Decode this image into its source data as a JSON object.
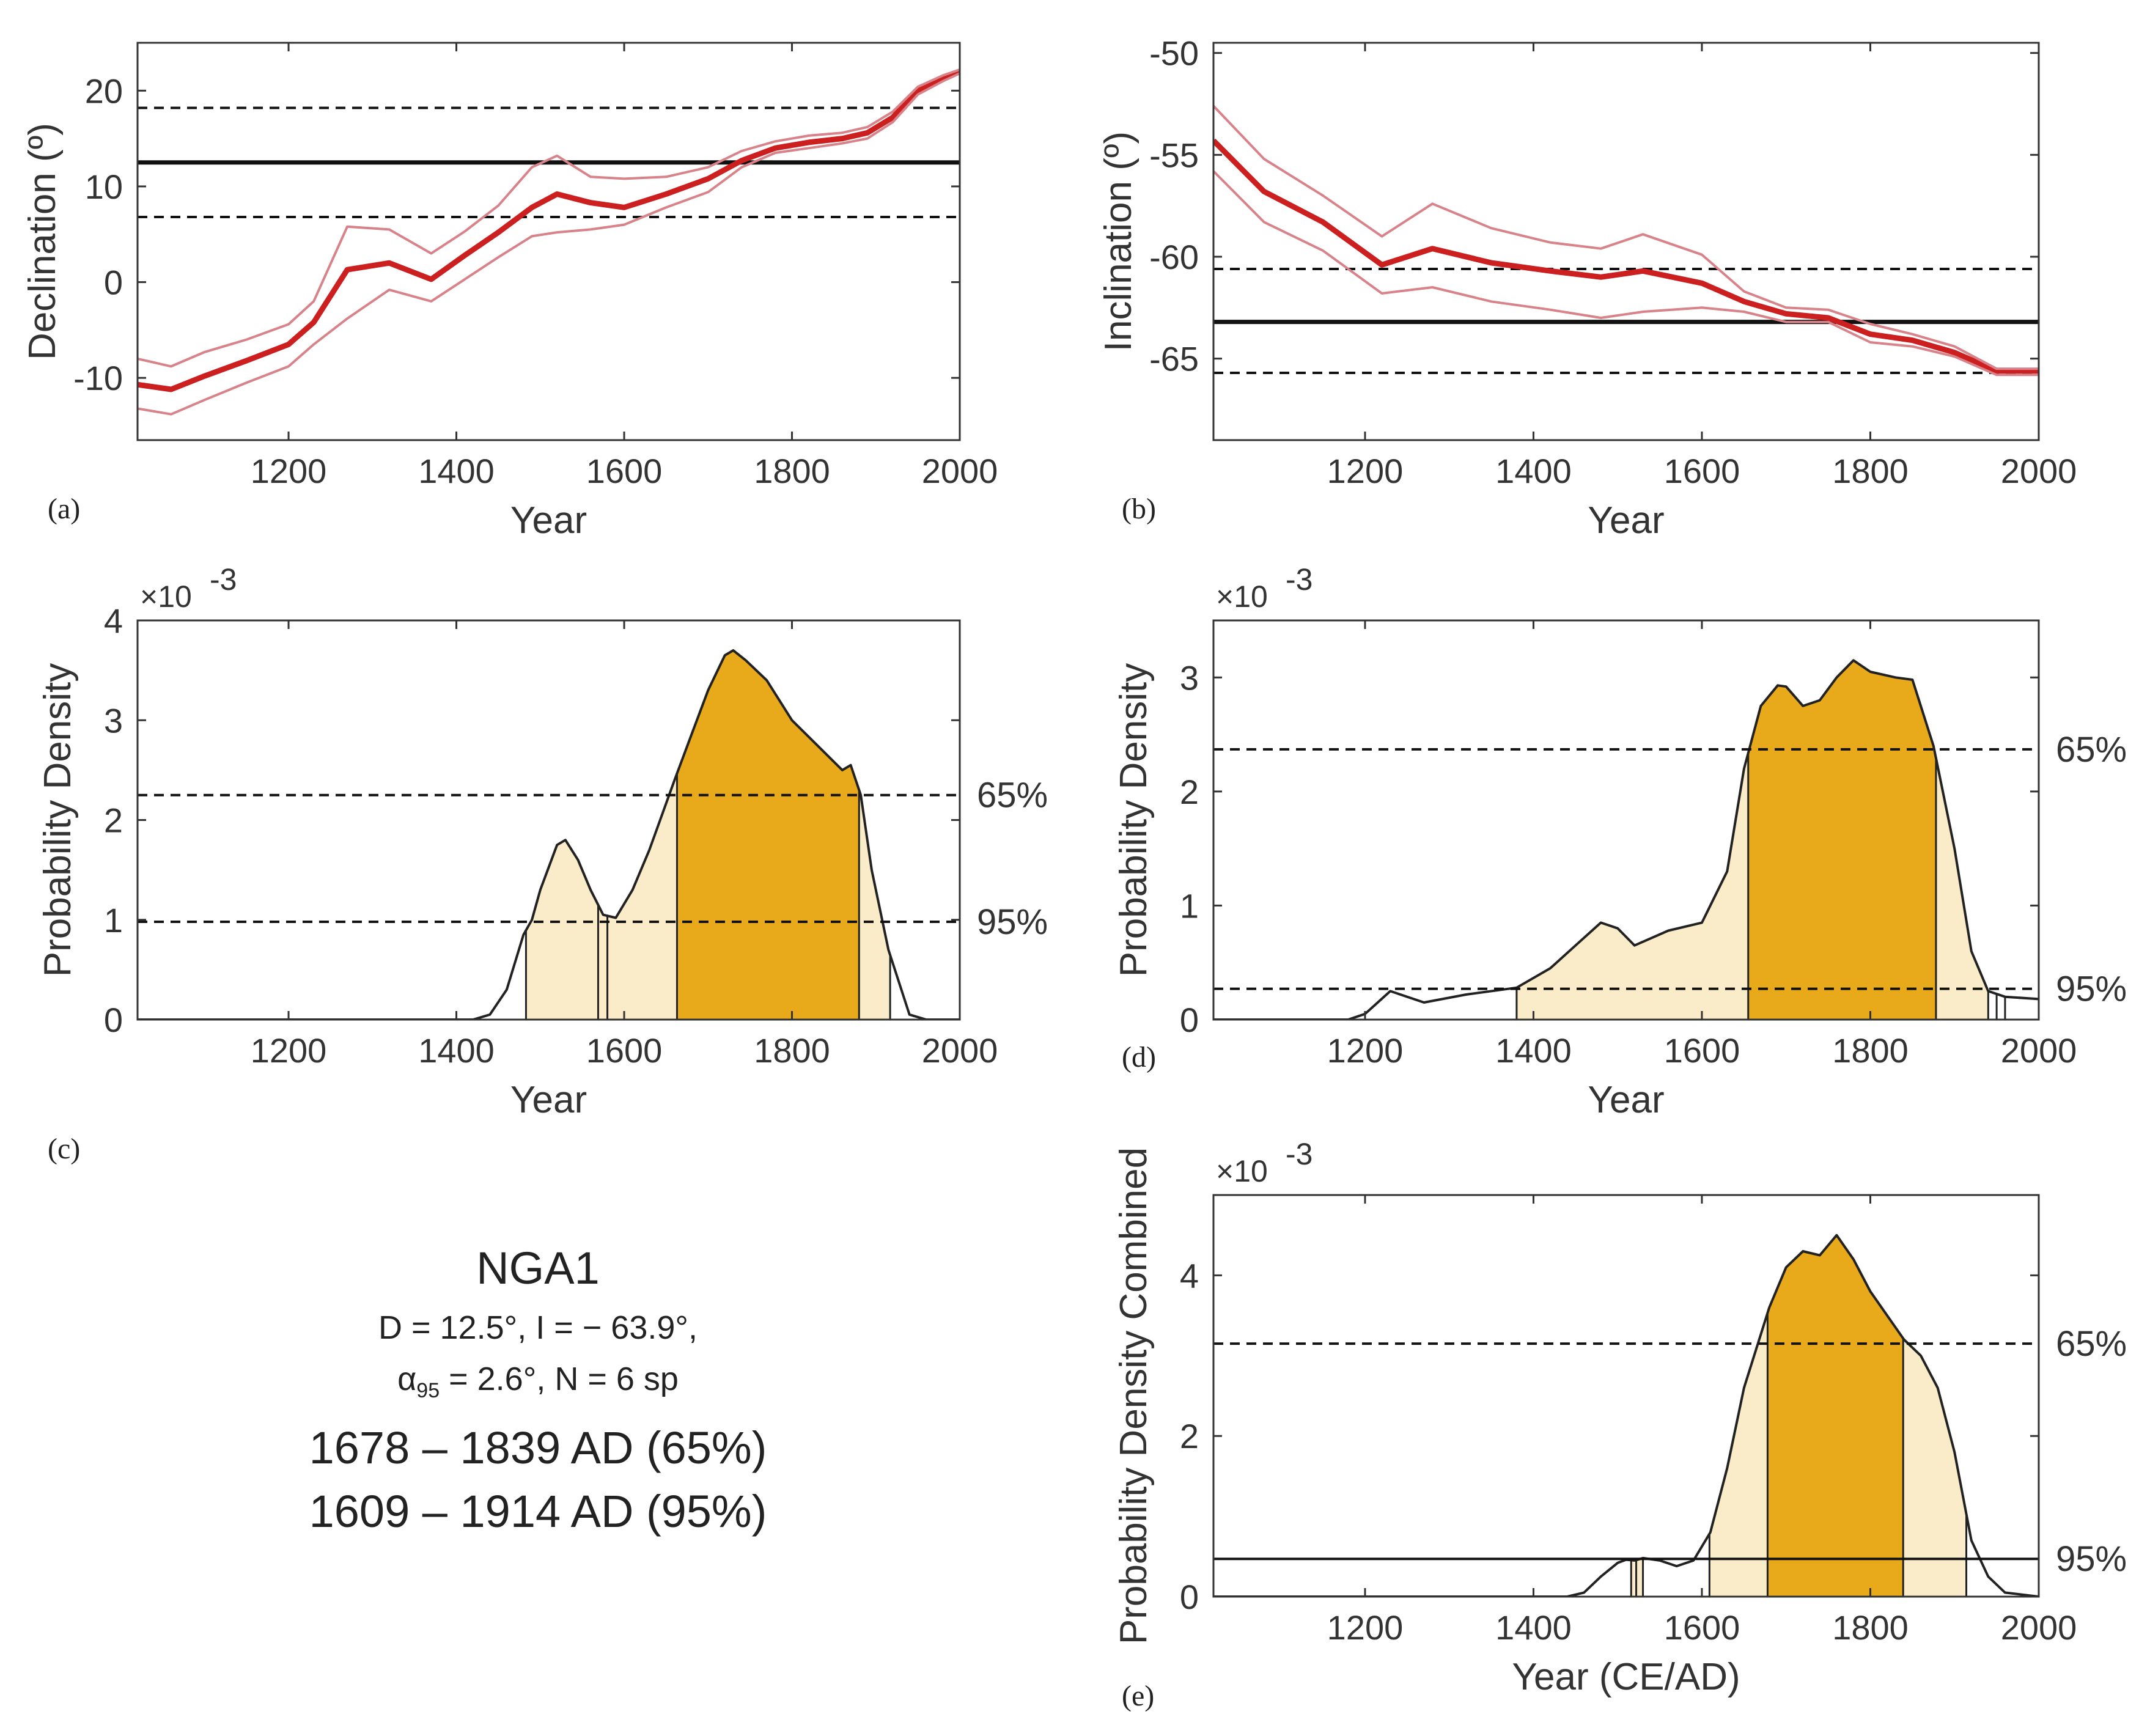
{
  "colors": {
    "red": "#cc1f1f",
    "red_light": "#d8828a",
    "gold": "#e8a91b",
    "cream": "#faecc9",
    "axis": "#333333"
  },
  "info": {
    "name": "NGA1",
    "line1": "D = 12.5°, I = − 63.9°,",
    "alpha_sym": "α",
    "alpha_sub": "95",
    "line2_rest": " = 2.6°, N = 6 sp",
    "range65": "1678 – 1839 AD (65%)",
    "range95": "1609 – 1914 AD (95%)"
  },
  "chart_data": [
    {
      "id": "a",
      "panel_label": "(a)",
      "type": "line",
      "xlabel": "Year",
      "ylabel": "Declination (º)",
      "xlim": [
        1020,
        2000
      ],
      "ylim": [
        -16.5,
        25
      ],
      "xticks": [
        1200,
        1400,
        1600,
        1800,
        2000
      ],
      "yticks": [
        -10,
        0,
        10,
        20
      ],
      "ytick_labels": [
        "-10",
        "0",
        "10",
        "20"
      ],
      "x": [
        1020,
        1060,
        1100,
        1150,
        1200,
        1230,
        1270,
        1320,
        1370,
        1410,
        1450,
        1490,
        1520,
        1560,
        1600,
        1650,
        1700,
        1740,
        1780,
        1820,
        1860,
        1890,
        1920,
        1950,
        1980,
        2000
      ],
      "series": [
        {
          "name": "mean",
          "values": [
            -10.7,
            -11.2,
            -9.8,
            -8.2,
            -6.5,
            -4.2,
            1.3,
            2.0,
            0.3,
            2.8,
            5.2,
            7.8,
            9.2,
            8.3,
            7.8,
            9.2,
            10.8,
            12.7,
            14.0,
            14.6,
            15.0,
            15.6,
            17.2,
            20.0,
            21.3,
            22.0
          ]
        },
        {
          "name": "upper",
          "values": [
            -8.0,
            -8.8,
            -7.3,
            -6.0,
            -4.4,
            -2.0,
            5.8,
            5.5,
            3.0,
            5.3,
            8.0,
            12.0,
            13.2,
            11.0,
            10.8,
            11.0,
            12.0,
            13.7,
            14.7,
            15.3,
            15.6,
            16.2,
            17.8,
            20.4,
            21.6,
            22.2
          ]
        },
        {
          "name": "lower",
          "values": [
            -13.2,
            -13.8,
            -12.3,
            -10.5,
            -8.8,
            -6.5,
            -3.8,
            -0.8,
            -2.0,
            0.3,
            2.6,
            4.8,
            5.2,
            5.5,
            6.0,
            7.8,
            9.4,
            12.0,
            13.5,
            14.0,
            14.5,
            15.0,
            16.7,
            19.6,
            21.0,
            21.8
          ]
        }
      ],
      "hlines": [
        {
          "y": 12.5,
          "style": "solid"
        },
        {
          "y": 18.2,
          "style": "dashed"
        },
        {
          "y": 6.8,
          "style": "dashed"
        }
      ]
    },
    {
      "id": "b",
      "panel_label": "(b)",
      "type": "line",
      "xlabel": "Year",
      "ylabel": "Inclination (º)",
      "xlim": [
        1020,
        2000
      ],
      "ylim": [
        -69,
        -49.5
      ],
      "xticks": [
        1200,
        1400,
        1600,
        1800,
        2000
      ],
      "yticks": [
        -65,
        -60,
        -55,
        -50
      ],
      "ytick_labels": [
        "-65",
        "-60",
        "-55",
        "-50"
      ],
      "x": [
        1020,
        1080,
        1150,
        1220,
        1280,
        1350,
        1420,
        1480,
        1530,
        1600,
        1650,
        1700,
        1750,
        1800,
        1850,
        1900,
        1950,
        2000
      ],
      "series": [
        {
          "name": "mean",
          "values": [
            -54.3,
            -56.8,
            -58.3,
            -60.4,
            -59.6,
            -60.3,
            -60.7,
            -61.0,
            -60.7,
            -61.3,
            -62.2,
            -62.8,
            -63.0,
            -63.8,
            -64.1,
            -64.7,
            -65.6,
            -65.6
          ]
        },
        {
          "name": "upper",
          "values": [
            -52.6,
            -55.2,
            -57.0,
            -59.0,
            -57.4,
            -58.6,
            -59.3,
            -59.6,
            -58.9,
            -59.9,
            -61.7,
            -62.5,
            -62.6,
            -63.3,
            -63.8,
            -64.4,
            -65.5,
            -65.5
          ]
        },
        {
          "name": "lower",
          "values": [
            -55.8,
            -58.3,
            -59.7,
            -61.8,
            -61.5,
            -62.2,
            -62.6,
            -63.0,
            -62.7,
            -62.5,
            -62.7,
            -63.2,
            -63.2,
            -64.2,
            -64.4,
            -64.9,
            -65.8,
            -65.8
          ]
        }
      ],
      "hlines": [
        {
          "y": -63.2,
          "style": "solid"
        },
        {
          "y": -60.6,
          "style": "dashed"
        },
        {
          "y": -65.7,
          "style": "dashed"
        }
      ]
    },
    {
      "id": "c",
      "panel_label": "(c)",
      "type": "area",
      "xlabel": "Year",
      "ylabel": "Probability Density",
      "exponent": "×10",
      "exponent_power": "-3",
      "xlim": [
        1020,
        2000
      ],
      "ylim": [
        0,
        4
      ],
      "xticks": [
        1200,
        1400,
        1600,
        1800,
        2000
      ],
      "yticks": [
        0,
        1,
        2,
        3,
        4
      ],
      "ytick_labels": [
        "0",
        "1",
        "2",
        "3",
        "4"
      ],
      "x": [
        1020,
        1420,
        1440,
        1460,
        1480,
        1490,
        1500,
        1520,
        1530,
        1545,
        1560,
        1575,
        1590,
        1610,
        1630,
        1660,
        1680,
        1700,
        1720,
        1730,
        1745,
        1770,
        1800,
        1830,
        1860,
        1870,
        1882,
        1895,
        1915,
        1940,
        1960,
        2000
      ],
      "values": [
        0,
        0,
        0.05,
        0.3,
        0.85,
        1.0,
        1.3,
        1.75,
        1.8,
        1.6,
        1.3,
        1.05,
        1.02,
        1.3,
        1.7,
        2.4,
        2.85,
        3.3,
        3.65,
        3.7,
        3.6,
        3.4,
        3.0,
        2.75,
        2.5,
        2.55,
        2.25,
        1.5,
        0.7,
        0.05,
        0,
        0
      ],
      "regions": [
        {
          "from": 1483,
          "to": 1917,
          "level": "95"
        },
        {
          "from": 1663,
          "to": 1880,
          "level": "65"
        }
      ],
      "boundaries": [
        1483,
        1569,
        1580,
        1663,
        1880,
        1917
      ],
      "thresholds": [
        {
          "y": 2.25,
          "label": "65%"
        },
        {
          "y": 0.98,
          "label": "95%"
        }
      ]
    },
    {
      "id": "d",
      "panel_label": "(d)",
      "type": "area",
      "xlabel": "Year",
      "ylabel": "Probability Density",
      "exponent": "×10",
      "exponent_power": "-3",
      "xlim": [
        1020,
        2000
      ],
      "ylim": [
        0,
        3.5
      ],
      "xticks": [
        1200,
        1400,
        1600,
        1800,
        2000
      ],
      "yticks": [
        0,
        1,
        2,
        3
      ],
      "ytick_labels": [
        "0",
        "1",
        "2",
        "3"
      ],
      "x": [
        1020,
        1180,
        1200,
        1230,
        1270,
        1320,
        1380,
        1420,
        1450,
        1480,
        1500,
        1520,
        1560,
        1600,
        1630,
        1650,
        1670,
        1690,
        1700,
        1720,
        1740,
        1760,
        1780,
        1800,
        1830,
        1850,
        1875,
        1900,
        1920,
        1940,
        1960,
        2000
      ],
      "values": [
        0,
        0,
        0.05,
        0.25,
        0.15,
        0.22,
        0.28,
        0.45,
        0.65,
        0.85,
        0.8,
        0.65,
        0.78,
        0.85,
        1.3,
        2.2,
        2.75,
        2.93,
        2.92,
        2.75,
        2.8,
        3.0,
        3.15,
        3.05,
        3.0,
        2.98,
        2.4,
        1.5,
        0.6,
        0.25,
        0.2,
        0.18
      ],
      "regions": [
        {
          "from": 1380,
          "to": 1940,
          "level": "95"
        },
        {
          "from": 1655,
          "to": 1878,
          "level": "65"
        }
      ],
      "boundaries": [
        1380,
        1655,
        1878,
        1940,
        1950,
        1960
      ],
      "thresholds": [
        {
          "y": 2.37,
          "label": "65%"
        },
        {
          "y": 0.27,
          "label": "95%"
        }
      ]
    },
    {
      "id": "e",
      "panel_label": "(e)",
      "type": "area",
      "xlabel": "Year (CE/AD)",
      "ylabel": "Probability Density Combined",
      "exponent": "×10",
      "exponent_power": "-3",
      "xlim": [
        1020,
        2000
      ],
      "ylim": [
        0,
        5
      ],
      "xticks": [
        1200,
        1400,
        1600,
        1800,
        2000
      ],
      "yticks": [
        0,
        2,
        4
      ],
      "ytick_labels": [
        "0",
        "2",
        "4"
      ],
      "x": [
        1020,
        1440,
        1460,
        1480,
        1500,
        1510,
        1520,
        1530,
        1550,
        1570,
        1590,
        1610,
        1630,
        1650,
        1680,
        1700,
        1720,
        1740,
        1760,
        1780,
        1800,
        1840,
        1860,
        1880,
        1900,
        1920,
        1940,
        1960,
        2000
      ],
      "values": [
        0,
        0,
        0.05,
        0.25,
        0.42,
        0.46,
        0.45,
        0.48,
        0.45,
        0.38,
        0.45,
        0.8,
        1.6,
        2.6,
        3.6,
        4.1,
        4.3,
        4.25,
        4.5,
        4.2,
        3.8,
        3.2,
        3.0,
        2.6,
        1.8,
        0.7,
        0.25,
        0.05,
        0
      ],
      "regions": [
        {
          "from": 1609,
          "to": 1914,
          "level": "95"
        },
        {
          "from": 1678,
          "to": 1839,
          "level": "65"
        },
        {
          "from": 1516,
          "to": 1530,
          "level": "95"
        }
      ],
      "boundaries": [
        1516,
        1522,
        1530,
        1609,
        1678,
        1839,
        1914
      ],
      "thresholds": [
        {
          "y": 3.15,
          "label": "65%",
          "style": "dashed"
        },
        {
          "y": 0.47,
          "label": "95%",
          "style": "solid"
        }
      ]
    }
  ]
}
